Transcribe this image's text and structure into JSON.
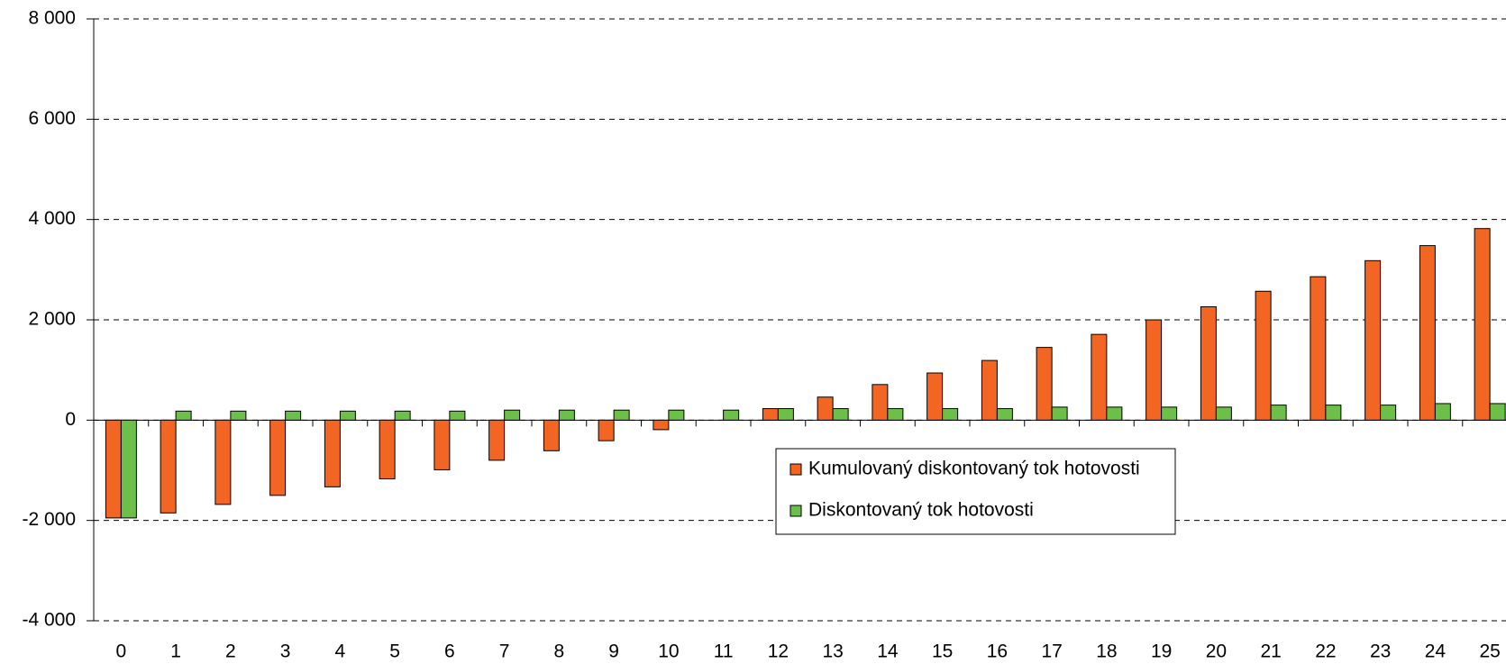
{
  "chart_data": {
    "type": "bar",
    "categories": [
      "0",
      "1",
      "2",
      "3",
      "4",
      "5",
      "6",
      "7",
      "8",
      "9",
      "10",
      "11",
      "12",
      "13",
      "14",
      "15",
      "16",
      "17",
      "18",
      "19",
      "20",
      "21",
      "22",
      "23",
      "24",
      "25"
    ],
    "series": [
      {
        "name": "Kumulovaný diskontovaný tok hotovosti",
        "color": "#f26522",
        "values": [
          -1950,
          -1850,
          -1680,
          -1500,
          -1330,
          -1170,
          -990,
          -800,
          -610,
          -410,
          -190,
          0,
          230,
          460,
          710,
          940,
          1190,
          1450,
          1710,
          2000,
          2260,
          2570,
          2860,
          3180,
          3480,
          3820
        ]
      },
      {
        "name": "Diskontovaný tok hotovosti",
        "color": "#6cc04a",
        "values": [
          -1950,
          180,
          180,
          180,
          180,
          180,
          180,
          200,
          200,
          200,
          200,
          200,
          230,
          230,
          230,
          230,
          230,
          260,
          260,
          260,
          260,
          300,
          300,
          300,
          330,
          330
        ]
      }
    ],
    "ylim": [
      -4000,
      8000
    ],
    "yticks": [
      {
        "value": -4000,
        "label": "-4 000"
      },
      {
        "value": -2000,
        "label": "-2 000"
      },
      0,
      {
        "value": 2000,
        "label": "2 000"
      },
      {
        "value": 4000,
        "label": "4 000"
      },
      {
        "value": 6000,
        "label": "6 000"
      },
      {
        "value": 8000,
        "label": "8 000"
      }
    ],
    "grid": true
  }
}
